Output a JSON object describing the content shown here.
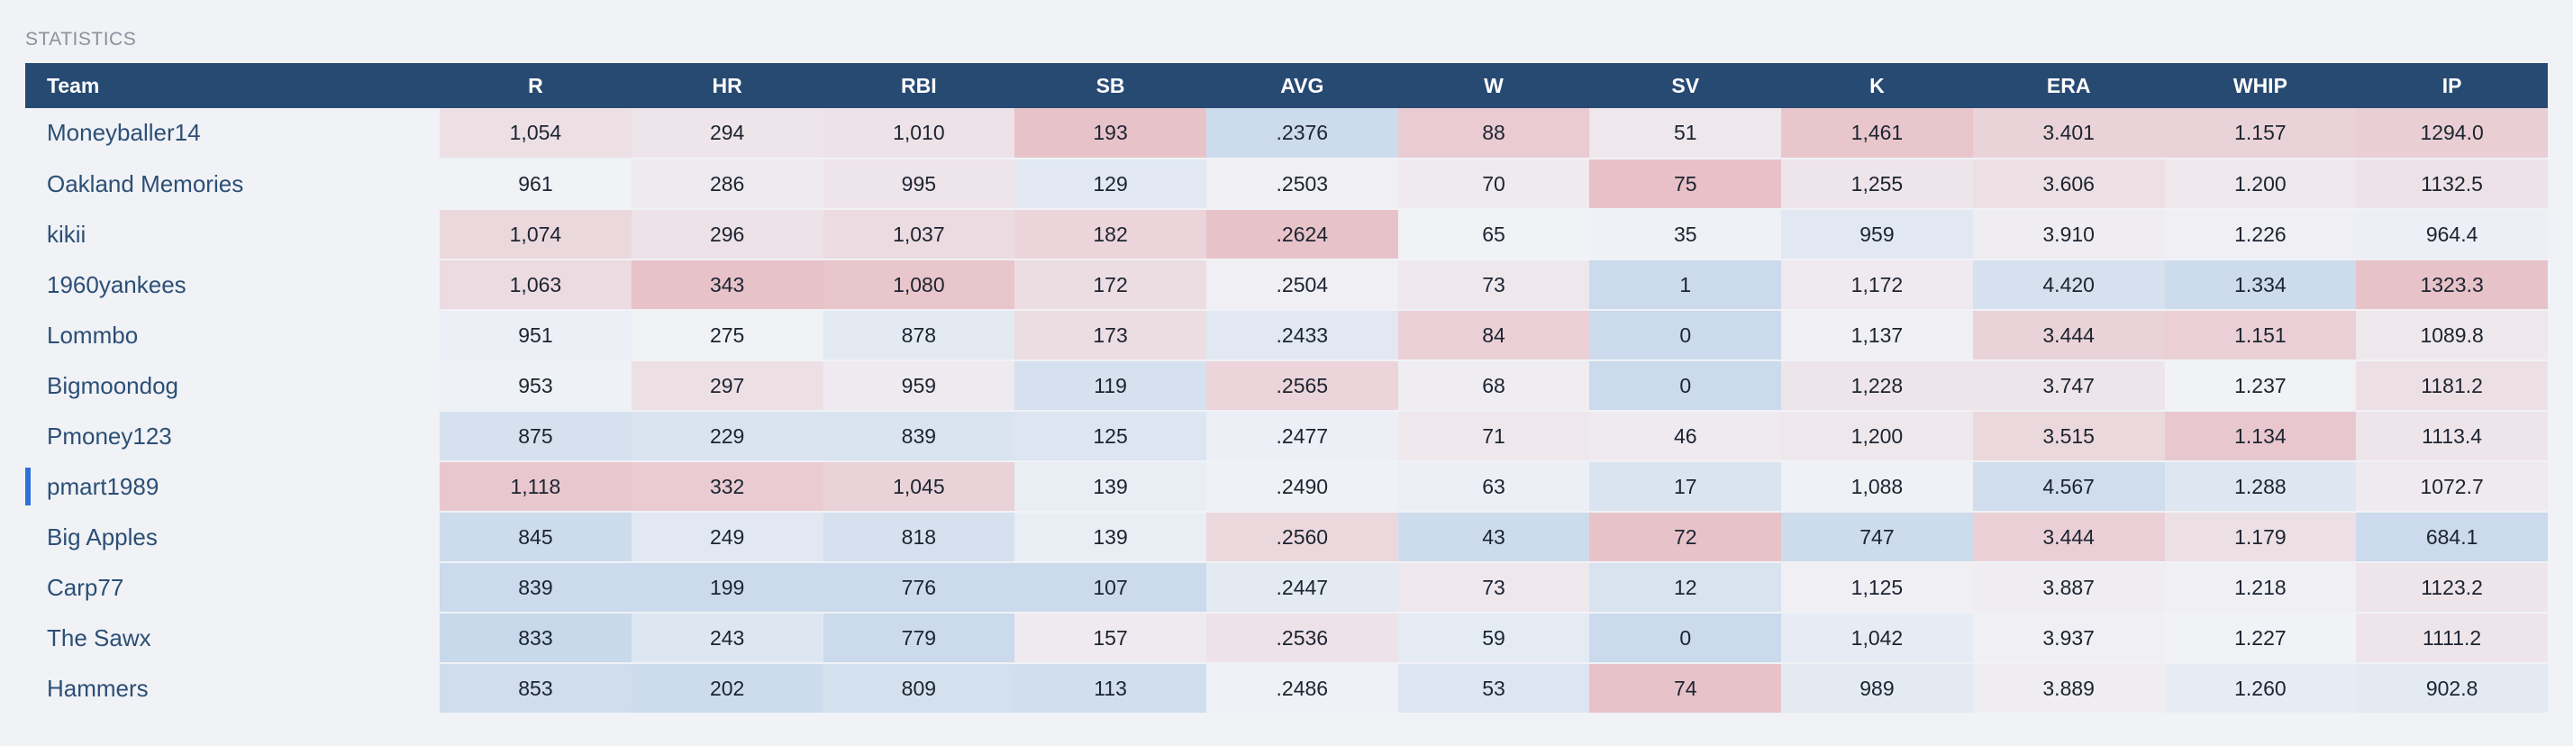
{
  "section_title": "STATISTICS",
  "colors": {
    "header_bg": "#274a73",
    "page_bg": "#f0f2f6",
    "active_indicator": "#2f6fd8",
    "heat_red": "#e6c2c7",
    "heat_blue": "#c6d7ea"
  },
  "columns": {
    "team": "Team",
    "stats": [
      "R",
      "HR",
      "RBI",
      "SB",
      "AVG",
      "W",
      "SV",
      "K",
      "ERA",
      "WHIP",
      "IP"
    ]
  },
  "rows": [
    {
      "team": "Moneyballer14",
      "active": false,
      "values": [
        "1,054",
        "294",
        "1,010",
        "193",
        ".2376",
        "88",
        "51",
        "1,461",
        "3.401",
        "1.157",
        "1294.0"
      ],
      "heat": [
        0.35,
        0.25,
        0.3,
        0.9,
        -0.8,
        0.75,
        0.2,
        0.85,
        0.6,
        0.6,
        0.7
      ]
    },
    {
      "team": "Oakland Memories",
      "active": false,
      "values": [
        "961",
        "286",
        "995",
        "129",
        ".2503",
        "70",
        "75",
        "1,255",
        "3.606",
        "1.200",
        "1132.5"
      ],
      "heat": [
        0.0,
        0.15,
        0.25,
        -0.35,
        0.05,
        0.15,
        0.95,
        0.25,
        0.35,
        0.2,
        0.3
      ]
    },
    {
      "team": "kikii",
      "active": false,
      "values": [
        "1,074",
        "296",
        "1,037",
        "182",
        ".2624",
        "65",
        "35",
        "959",
        "3.910",
        "1.226",
        "964.4"
      ],
      "heat": [
        0.5,
        0.3,
        0.45,
        0.55,
        0.9,
        0.0,
        -0.05,
        -0.35,
        0.1,
        0.05,
        -0.1
      ]
    },
    {
      "team": "1960yankees",
      "active": false,
      "values": [
        "1,063",
        "343",
        "1,080",
        "172",
        ".2504",
        "73",
        "1",
        "1,172",
        "4.420",
        "1.334",
        "1323.3"
      ],
      "heat": [
        0.45,
        0.9,
        0.85,
        0.4,
        0.05,
        0.2,
        -0.85,
        0.15,
        -0.6,
        -0.8,
        0.9
      ]
    },
    {
      "team": "Lommbo",
      "active": false,
      "values": [
        "951",
        "275",
        "878",
        "173",
        ".2433",
        "84",
        "0",
        "1,137",
        "3.444",
        "1.151",
        "1089.8"
      ],
      "heat": [
        -0.1,
        0.0,
        -0.3,
        0.4,
        -0.35,
        0.65,
        -0.85,
        0.05,
        0.6,
        0.65,
        0.2
      ]
    },
    {
      "team": "Bigmoondog",
      "active": false,
      "values": [
        "953",
        "297",
        "959",
        "119",
        ".2565",
        "68",
        "0",
        "1,228",
        "3.747",
        "1.237",
        "1181.2"
      ],
      "heat": [
        -0.05,
        0.35,
        0.15,
        -0.6,
        0.55,
        0.1,
        -0.85,
        0.25,
        0.25,
        0.0,
        0.35
      ]
    },
    {
      "team": "Pmoney123",
      "active": false,
      "values": [
        "875",
        "229",
        "839",
        "125",
        ".2477",
        "71",
        "46",
        "1,200",
        "3.515",
        "1.134",
        "1113.4"
      ],
      "heat": [
        -0.6,
        -0.5,
        -0.5,
        -0.45,
        -0.1,
        0.2,
        0.15,
        0.2,
        0.5,
        0.8,
        0.25
      ]
    },
    {
      "team": "pmart1989",
      "active": true,
      "values": [
        "1,118",
        "332",
        "1,045",
        "139",
        ".2490",
        "63",
        "17",
        "1,088",
        "4.567",
        "1.288",
        "1072.7"
      ],
      "heat": [
        0.8,
        0.75,
        0.6,
        -0.15,
        -0.05,
        -0.1,
        -0.5,
        -0.05,
        -0.75,
        -0.4,
        0.15
      ]
    },
    {
      "team": "Big Apples",
      "active": false,
      "values": [
        "845",
        "249",
        "818",
        "139",
        ".2560",
        "43",
        "72",
        "747",
        "3.444",
        "1.179",
        "684.1"
      ],
      "heat": [
        -0.8,
        -0.35,
        -0.6,
        -0.15,
        0.5,
        -0.8,
        0.9,
        -0.8,
        0.65,
        0.35,
        -0.85
      ]
    },
    {
      "team": "Carp77",
      "active": false,
      "values": [
        "839",
        "199",
        "776",
        "107",
        ".2447",
        "73",
        "12",
        "1,125",
        "3.887",
        "1.218",
        "1123.2"
      ],
      "heat": [
        -0.85,
        -0.85,
        -0.85,
        -0.85,
        -0.3,
        0.2,
        -0.55,
        0.05,
        0.1,
        0.05,
        0.25
      ]
    },
    {
      "team": "The Sawx",
      "active": false,
      "values": [
        "833",
        "243",
        "779",
        "157",
        ".2536",
        "59",
        "0",
        "1,042",
        "3.937",
        "1.227",
        "1111.2"
      ],
      "heat": [
        -0.9,
        -0.4,
        -0.85,
        0.15,
        0.3,
        -0.25,
        -0.85,
        -0.2,
        0.05,
        0.0,
        0.25
      ]
    },
    {
      "team": "Hammers",
      "active": false,
      "values": [
        "853",
        "202",
        "809",
        "113",
        ".2486",
        "53",
        "74",
        "989",
        "3.889",
        "1.260",
        "902.8"
      ],
      "heat": [
        -0.75,
        -0.8,
        -0.65,
        -0.7,
        -0.05,
        -0.45,
        0.9,
        -0.3,
        0.1,
        -0.2,
        -0.3
      ]
    }
  ]
}
